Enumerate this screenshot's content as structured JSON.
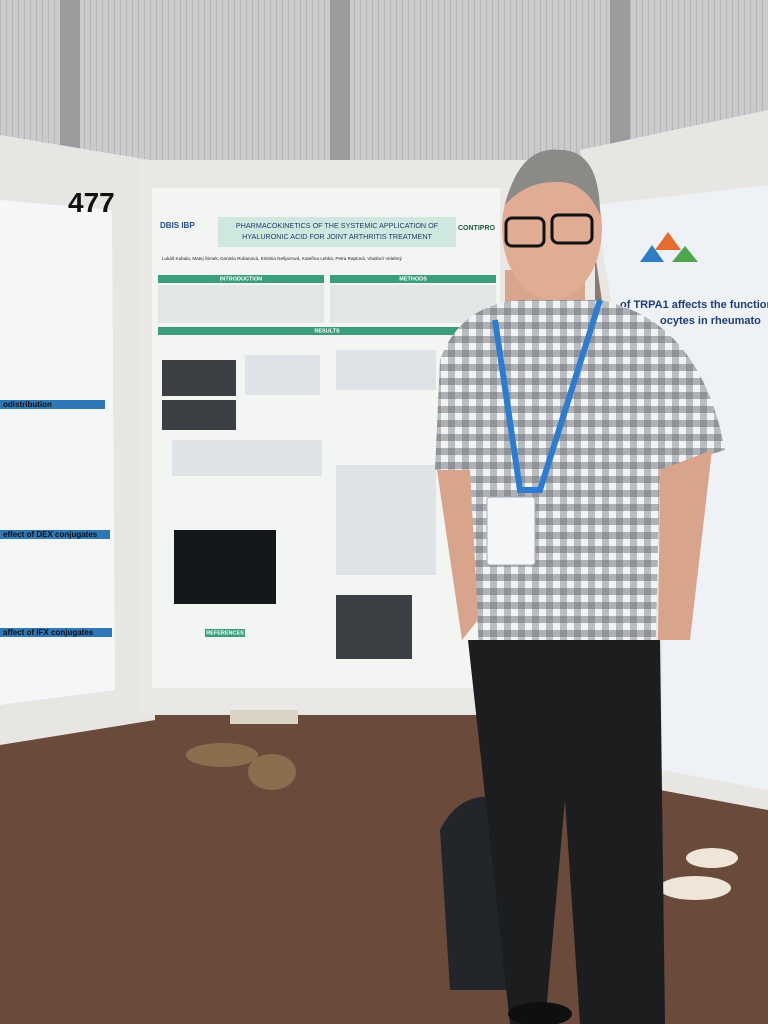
{
  "poster_number": "477",
  "main_poster": {
    "logo_left": "DBIS IBP",
    "logo_right": "CONTIPRO",
    "title_line_1": "PHARMACOKINETICS OF THE SYSTEMIC APPLICATION OF",
    "title_line_2": "HYALURONIC ACID FOR JOINT ARTHRITIS TREATMENT",
    "authors": "Lukáš Kubala, Matej Šimek, Daniela Rubanová, Kristina Nešporová, Kateřina Lehká, Petra Raptová, Vladimír Velebný",
    "sections": [
      "INTRODUCTION",
      "METHODS",
      "RESULTS",
      "REFERENCES"
    ]
  },
  "left_poster": {
    "headings": [
      "odistribution",
      "effect of DEX conjugates",
      "affect of IFX conjugates"
    ]
  },
  "right_poster": {
    "title_line_1": "of TRPA1 affects the function",
    "title_line_2": "ocytes in rheumato"
  }
}
